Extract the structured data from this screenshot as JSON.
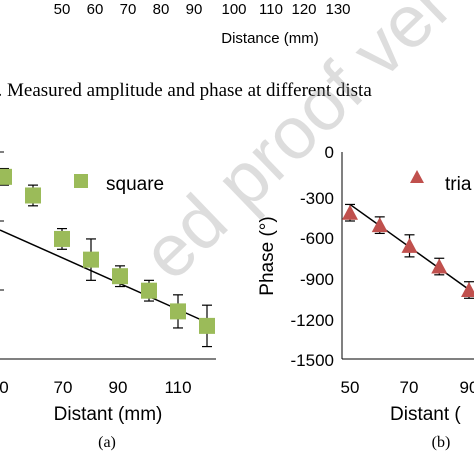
{
  "top_strip": {
    "ticks": [
      "50",
      "60",
      "70",
      "80",
      "90",
      "100",
      "110",
      "120",
      "130"
    ],
    "xlabel": "Distance (mm)"
  },
  "caption": "7. Measured amplitude and phase at different dista",
  "watermark": "ed proof ver",
  "chart_data": [
    {
      "type": "scatter",
      "panel_label": "(a)",
      "xlabel": "Distant (mm)",
      "x_ticks": [
        "70",
        "90",
        "110"
      ],
      "x_edge_tick": "0",
      "legend": "square",
      "marker": "square",
      "color": "#9BBB59",
      "fit_line": true,
      "x": [
        50,
        60,
        70,
        80,
        90,
        100,
        110,
        120
      ],
      "relative_level": [
        0.88,
        0.79,
        0.58,
        0.48,
        0.4,
        0.33,
        0.23,
        0.16
      ],
      "error_fraction": [
        0.04,
        0.05,
        0.05,
        0.1,
        0.05,
        0.05,
        0.08,
        0.1
      ]
    },
    {
      "type": "scatter",
      "panel_label": "(b)",
      "xlabel": "Distant (",
      "ylabel": "Phase (°)",
      "y_ticks": [
        "0",
        "-300",
        "-600",
        "-900",
        "-1200",
        "-1500"
      ],
      "x_ticks": [
        "50",
        "70",
        "90"
      ],
      "legend": "tria",
      "marker": "triangle",
      "color": "#C0504D",
      "fit_line": true,
      "ylim": [
        -1500,
        0
      ],
      "x": [
        50,
        60,
        70,
        80,
        90
      ],
      "y": [
        -440,
        -530,
        -680,
        -830,
        -1000
      ],
      "yerr": [
        60,
        60,
        80,
        60,
        60
      ],
      "fit": {
        "x": [
          50,
          97
        ],
        "y": [
          -380,
          -1105
        ]
      }
    }
  ]
}
